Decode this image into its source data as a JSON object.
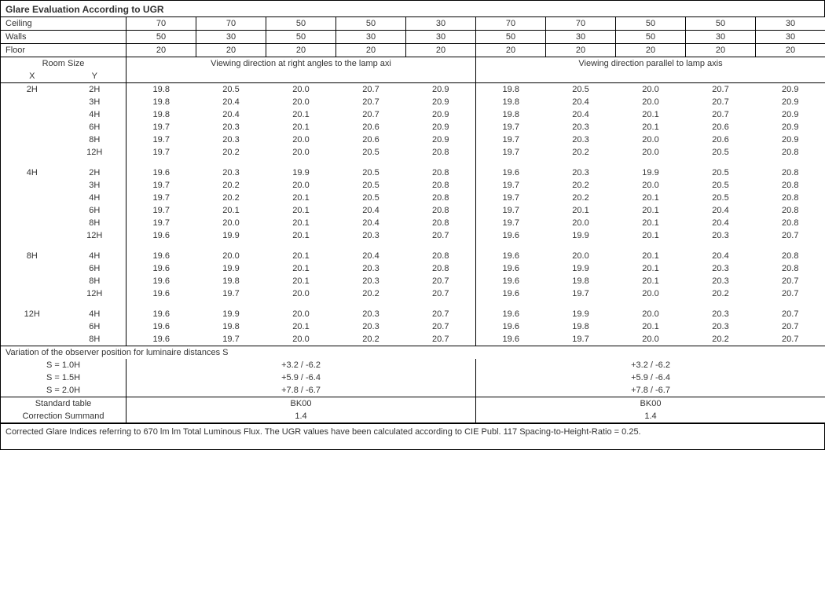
{
  "title": "Glare Evaluation According to UGR",
  "header_rows": {
    "ceiling_label": "Ceiling",
    "walls_label": "Walls",
    "floor_label": "Floor",
    "ceiling": [
      "70",
      "70",
      "50",
      "50",
      "30",
      "70",
      "70",
      "50",
      "50",
      "30"
    ],
    "walls": [
      "50",
      "30",
      "50",
      "30",
      "30",
      "50",
      "30",
      "50",
      "30",
      "30"
    ],
    "floor": [
      "20",
      "20",
      "20",
      "20",
      "20",
      "20",
      "20",
      "20",
      "20",
      "20"
    ]
  },
  "room_size_label": "Room Size",
  "x_label": "X",
  "y_label": "Y",
  "view_right_label": "Viewing direction at right angles to the lamp axi",
  "view_parallel_label": "Viewing direction parallel to lamp axis",
  "groups": [
    {
      "x": "2H",
      "rows": [
        {
          "y": "2H",
          "v": [
            "19.8",
            "20.5",
            "20.0",
            "20.7",
            "20.9",
            "19.8",
            "20.5",
            "20.0",
            "20.7",
            "20.9"
          ]
        },
        {
          "y": "3H",
          "v": [
            "19.8",
            "20.4",
            "20.0",
            "20.7",
            "20.9",
            "19.8",
            "20.4",
            "20.0",
            "20.7",
            "20.9"
          ]
        },
        {
          "y": "4H",
          "v": [
            "19.8",
            "20.4",
            "20.1",
            "20.7",
            "20.9",
            "19.8",
            "20.4",
            "20.1",
            "20.7",
            "20.9"
          ]
        },
        {
          "y": "6H",
          "v": [
            "19.7",
            "20.3",
            "20.1",
            "20.6",
            "20.9",
            "19.7",
            "20.3",
            "20.1",
            "20.6",
            "20.9"
          ]
        },
        {
          "y": "8H",
          "v": [
            "19.7",
            "20.3",
            "20.0",
            "20.6",
            "20.9",
            "19.7",
            "20.3",
            "20.0",
            "20.6",
            "20.9"
          ]
        },
        {
          "y": "12H",
          "v": [
            "19.7",
            "20.2",
            "20.0",
            "20.5",
            "20.8",
            "19.7",
            "20.2",
            "20.0",
            "20.5",
            "20.8"
          ]
        }
      ]
    },
    {
      "x": "4H",
      "rows": [
        {
          "y": "2H",
          "v": [
            "19.6",
            "20.3",
            "19.9",
            "20.5",
            "20.8",
            "19.6",
            "20.3",
            "19.9",
            "20.5",
            "20.8"
          ]
        },
        {
          "y": "3H",
          "v": [
            "19.7",
            "20.2",
            "20.0",
            "20.5",
            "20.8",
            "19.7",
            "20.2",
            "20.0",
            "20.5",
            "20.8"
          ]
        },
        {
          "y": "4H",
          "v": [
            "19.7",
            "20.2",
            "20.1",
            "20.5",
            "20.8",
            "19.7",
            "20.2",
            "20.1",
            "20.5",
            "20.8"
          ]
        },
        {
          "y": "6H",
          "v": [
            "19.7",
            "20.1",
            "20.1",
            "20.4",
            "20.8",
            "19.7",
            "20.1",
            "20.1",
            "20.4",
            "20.8"
          ]
        },
        {
          "y": "8H",
          "v": [
            "19.7",
            "20.0",
            "20.1",
            "20.4",
            "20.8",
            "19.7",
            "20.0",
            "20.1",
            "20.4",
            "20.8"
          ]
        },
        {
          "y": "12H",
          "v": [
            "19.6",
            "19.9",
            "20.1",
            "20.3",
            "20.7",
            "19.6",
            "19.9",
            "20.1",
            "20.3",
            "20.7"
          ]
        }
      ]
    },
    {
      "x": "8H",
      "rows": [
        {
          "y": "4H",
          "v": [
            "19.6",
            "20.0",
            "20.1",
            "20.4",
            "20.8",
            "19.6",
            "20.0",
            "20.1",
            "20.4",
            "20.8"
          ]
        },
        {
          "y": "6H",
          "v": [
            "19.6",
            "19.9",
            "20.1",
            "20.3",
            "20.8",
            "19.6",
            "19.9",
            "20.1",
            "20.3",
            "20.8"
          ]
        },
        {
          "y": "8H",
          "v": [
            "19.6",
            "19.8",
            "20.1",
            "20.3",
            "20.7",
            "19.6",
            "19.8",
            "20.1",
            "20.3",
            "20.7"
          ]
        },
        {
          "y": "12H",
          "v": [
            "19.6",
            "19.7",
            "20.0",
            "20.2",
            "20.7",
            "19.6",
            "19.7",
            "20.0",
            "20.2",
            "20.7"
          ]
        }
      ]
    },
    {
      "x": "12H",
      "rows": [
        {
          "y": "4H",
          "v": [
            "19.6",
            "19.9",
            "20.0",
            "20.3",
            "20.7",
            "19.6",
            "19.9",
            "20.0",
            "20.3",
            "20.7"
          ]
        },
        {
          "y": "6H",
          "v": [
            "19.6",
            "19.8",
            "20.1",
            "20.3",
            "20.7",
            "19.6",
            "19.8",
            "20.1",
            "20.3",
            "20.7"
          ]
        },
        {
          "y": "8H",
          "v": [
            "19.6",
            "19.7",
            "20.0",
            "20.2",
            "20.7",
            "19.6",
            "19.7",
            "20.0",
            "20.2",
            "20.7"
          ]
        }
      ]
    }
  ],
  "variation_label": "Variation of the observer position for luminaire distances S",
  "variation_rows": [
    {
      "s": "S = 1.0H",
      "left": "+3.2 / -6.2",
      "right": "+3.2 / -6.2"
    },
    {
      "s": "S = 1.5H",
      "left": "+5.9 / -6.4",
      "right": "+5.9 / -6.4"
    },
    {
      "s": "S = 2.0H",
      "left": "+7.8 / -6.7",
      "right": "+7.8 / -6.7"
    }
  ],
  "standard_table_label": "Standard table",
  "standard_table_left": "BK00",
  "standard_table_right": "BK00",
  "correction_label": "Correction Summand",
  "correction_left": "1.4",
  "correction_right": "1.4",
  "footnote": "Corrected Glare Indices referring to 670 lm lm Total Luminous Flux. The UGR values have been calculated according to CIE Publ. 117    Spacing-to-Height-Ratio = 0.25."
}
